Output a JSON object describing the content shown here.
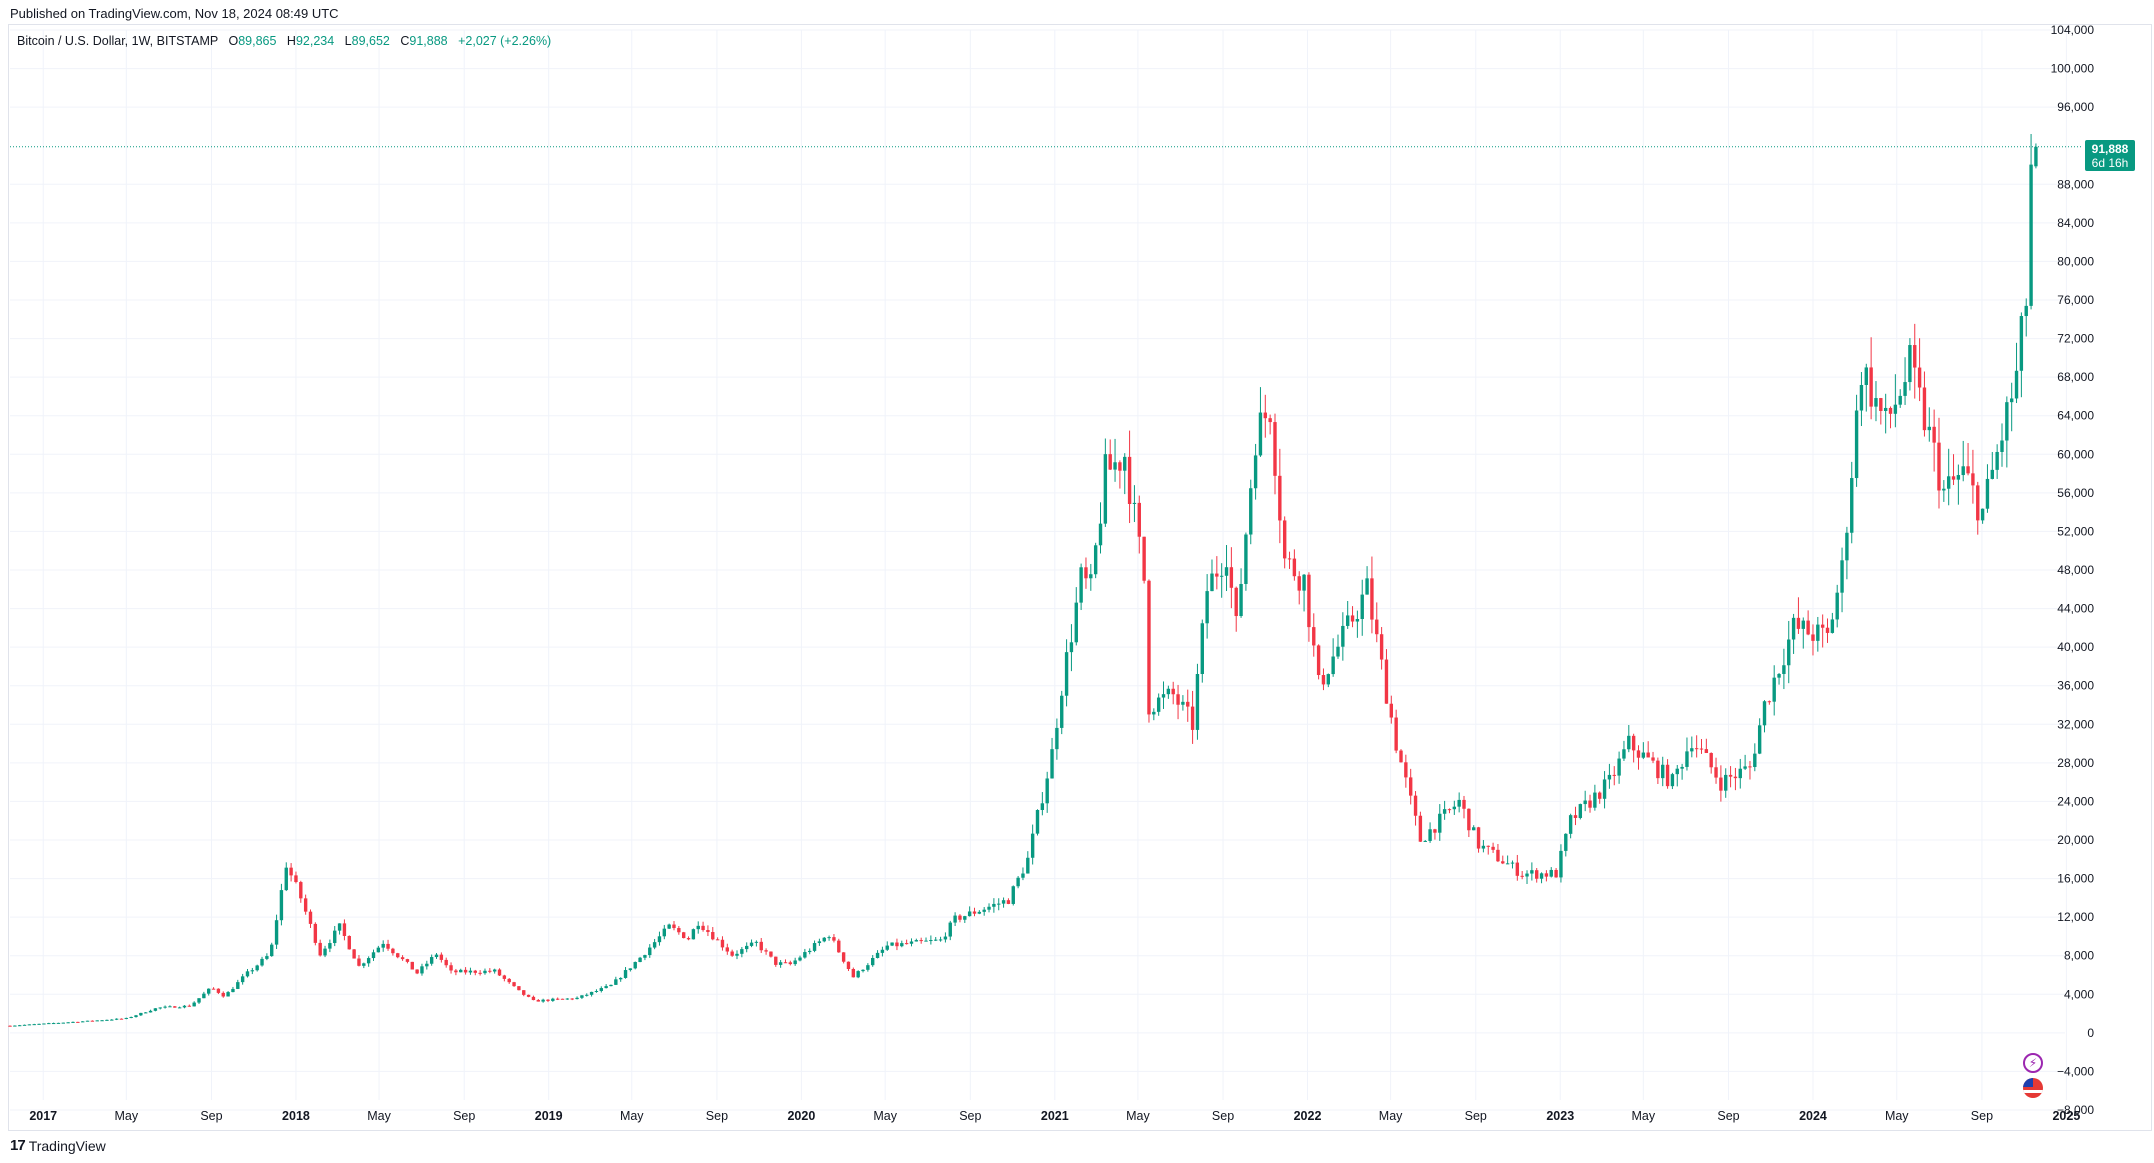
{
  "header": {
    "published": "Published on TradingView.com, Nov 18, 2024 08:49 UTC"
  },
  "legend": {
    "symbol": "Bitcoin / U.S. Dollar, 1W, BITSTAMP",
    "o_label": "O",
    "o_value": "89,865",
    "h_label": "H",
    "h_value": "92,234",
    "l_label": "L",
    "l_value": "89,652",
    "c_label": "C",
    "c_value": "91,888",
    "change": "+2,027 (+2.26%)"
  },
  "last_price": {
    "price": "91,888",
    "countdown": "6d 16h"
  },
  "footer": {
    "brand_mark": "17",
    "brand": "TradingView"
  },
  "colors": {
    "up": "#089981",
    "down": "#f23645",
    "grid": "#f0f3fa",
    "axis_text": "#131722",
    "price_line": "#089981"
  },
  "icons": [
    "lightning-icon",
    "us-flag-icon",
    "tradingview-logo-icon"
  ],
  "chart_data": {
    "type": "candlestick",
    "title": "Bitcoin / U.S. Dollar, 1W, BITSTAMP",
    "ylim": [
      -8000,
      104000
    ],
    "y_ticks": [
      104000,
      100000,
      96000,
      88000,
      84000,
      80000,
      76000,
      72000,
      68000,
      64000,
      60000,
      56000,
      52000,
      48000,
      44000,
      40000,
      36000,
      32000,
      28000,
      24000,
      20000,
      16000,
      12000,
      8000,
      4000,
      0,
      -4000,
      -8000
    ],
    "y_tick_labels": [
      "104,000",
      "100,000",
      "96,000",
      "88,000",
      "84,000",
      "80,000",
      "76,000",
      "72,000",
      "68,000",
      "64,000",
      "60,000",
      "56,000",
      "52,000",
      "48,000",
      "44,000",
      "40,000",
      "36,000",
      "32,000",
      "28,000",
      "24,000",
      "20,000",
      "16,000",
      "12,000",
      "8,000",
      "4,000",
      "0",
      "−4,000",
      "−8,000"
    ],
    "xlim": [
      "2016-11-14",
      "2024-12-30"
    ],
    "x_ticks": [
      {
        "date": "2017-01-01",
        "label": "2017"
      },
      {
        "date": "2017-05-01",
        "label": "May"
      },
      {
        "date": "2017-09-01",
        "label": "Sep"
      },
      {
        "date": "2018-01-01",
        "label": "2018"
      },
      {
        "date": "2018-05-01",
        "label": "May"
      },
      {
        "date": "2018-09-01",
        "label": "Sep"
      },
      {
        "date": "2019-01-01",
        "label": "2019"
      },
      {
        "date": "2019-05-01",
        "label": "May"
      },
      {
        "date": "2019-09-01",
        "label": "Sep"
      },
      {
        "date": "2020-01-01",
        "label": "2020"
      },
      {
        "date": "2020-05-01",
        "label": "May"
      },
      {
        "date": "2020-09-01",
        "label": "Sep"
      },
      {
        "date": "2021-01-01",
        "label": "2021"
      },
      {
        "date": "2021-05-01",
        "label": "May"
      },
      {
        "date": "2021-09-01",
        "label": "Sep"
      },
      {
        "date": "2022-01-01",
        "label": "2022"
      },
      {
        "date": "2022-05-01",
        "label": "May"
      },
      {
        "date": "2022-09-01",
        "label": "Sep"
      },
      {
        "date": "2023-01-01",
        "label": "2023"
      },
      {
        "date": "2023-05-01",
        "label": "May"
      },
      {
        "date": "2023-09-01",
        "label": "Sep"
      },
      {
        "date": "2024-01-01",
        "label": "2024"
      },
      {
        "date": "2024-05-01",
        "label": "May"
      },
      {
        "date": "2024-09-01",
        "label": "Sep"
      },
      {
        "date": "2025-01-01",
        "label": "2025"
      }
    ],
    "interval": "1W",
    "close_path": [
      {
        "date": "2016-11-14",
        "close": 740
      },
      {
        "date": "2017-03-01",
        "close": 1200
      },
      {
        "date": "2017-05-01",
        "close": 1500
      },
      {
        "date": "2017-06-15",
        "close": 2600
      },
      {
        "date": "2017-08-01",
        "close": 2800
      },
      {
        "date": "2017-09-01",
        "close": 4700
      },
      {
        "date": "2017-09-20",
        "close": 3800
      },
      {
        "date": "2017-10-20",
        "close": 6000
      },
      {
        "date": "2017-11-25",
        "close": 8200
      },
      {
        "date": "2017-12-18",
        "close": 17500
      },
      {
        "date": "2018-01-08",
        "close": 14000
      },
      {
        "date": "2018-02-05",
        "close": 8200
      },
      {
        "date": "2018-03-05",
        "close": 11000
      },
      {
        "date": "2018-04-02",
        "close": 6900
      },
      {
        "date": "2018-05-07",
        "close": 9400
      },
      {
        "date": "2018-06-25",
        "close": 6200
      },
      {
        "date": "2018-07-23",
        "close": 8200
      },
      {
        "date": "2018-08-13",
        "close": 6300
      },
      {
        "date": "2018-10-15",
        "close": 6400
      },
      {
        "date": "2018-11-19",
        "close": 4300
      },
      {
        "date": "2018-12-10",
        "close": 3300
      },
      {
        "date": "2019-02-11",
        "close": 3600
      },
      {
        "date": "2019-04-01",
        "close": 4900
      },
      {
        "date": "2019-05-13",
        "close": 7800
      },
      {
        "date": "2019-06-24",
        "close": 11000
      },
      {
        "date": "2019-07-22",
        "close": 9800
      },
      {
        "date": "2019-08-05",
        "close": 11500
      },
      {
        "date": "2019-09-23",
        "close": 8100
      },
      {
        "date": "2019-10-28",
        "close": 9300
      },
      {
        "date": "2019-11-25",
        "close": 7200
      },
      {
        "date": "2019-12-16",
        "close": 7100
      },
      {
        "date": "2020-02-10",
        "close": 10200
      },
      {
        "date": "2020-03-16",
        "close": 5800
      },
      {
        "date": "2020-05-04",
        "close": 9000
      },
      {
        "date": "2020-07-20",
        "close": 9600
      },
      {
        "date": "2020-08-10",
        "close": 11800
      },
      {
        "date": "2020-10-26",
        "close": 13800
      },
      {
        "date": "2020-11-23",
        "close": 18000
      },
      {
        "date": "2020-12-28",
        "close": 29000
      },
      {
        "date": "2021-01-11",
        "close": 36000
      },
      {
        "date": "2021-02-08",
        "close": 47000
      },
      {
        "date": "2021-02-22",
        "close": 46000
      },
      {
        "date": "2021-03-15",
        "close": 58000
      },
      {
        "date": "2021-04-12",
        "close": 60000
      },
      {
        "date": "2021-05-10",
        "close": 47000
      },
      {
        "date": "2021-05-17",
        "close": 34000
      },
      {
        "date": "2021-06-21",
        "close": 35000
      },
      {
        "date": "2021-07-19",
        "close": 32000
      },
      {
        "date": "2021-08-09",
        "close": 46000
      },
      {
        "date": "2021-09-06",
        "close": 50000
      },
      {
        "date": "2021-09-20",
        "close": 42000
      },
      {
        "date": "2021-10-18",
        "close": 62000
      },
      {
        "date": "2021-11-08",
        "close": 65000
      },
      {
        "date": "2021-11-29",
        "close": 49000
      },
      {
        "date": "2021-12-27",
        "close": 47000
      },
      {
        "date": "2022-01-17",
        "close": 36000
      },
      {
        "date": "2022-03-28",
        "close": 46000
      },
      {
        "date": "2022-05-09",
        "close": 30000
      },
      {
        "date": "2022-06-13",
        "close": 20000
      },
      {
        "date": "2022-08-08",
        "close": 24000
      },
      {
        "date": "2022-09-05",
        "close": 19500
      },
      {
        "date": "2022-11-07",
        "close": 16500
      },
      {
        "date": "2022-12-26",
        "close": 16500
      },
      {
        "date": "2023-01-16",
        "close": 22000
      },
      {
        "date": "2023-03-13",
        "close": 26000
      },
      {
        "date": "2023-04-10",
        "close": 30000
      },
      {
        "date": "2023-06-12",
        "close": 26000
      },
      {
        "date": "2023-07-10",
        "close": 30500
      },
      {
        "date": "2023-08-21",
        "close": 26000
      },
      {
        "date": "2023-10-02",
        "close": 27500
      },
      {
        "date": "2023-10-23",
        "close": 34000
      },
      {
        "date": "2023-12-04",
        "close": 42000
      },
      {
        "date": "2024-01-22",
        "close": 41000
      },
      {
        "date": "2024-02-12",
        "close": 48000
      },
      {
        "date": "2024-03-11",
        "close": 69000
      },
      {
        "date": "2024-04-15",
        "close": 63000
      },
      {
        "date": "2024-05-20",
        "close": 69000
      },
      {
        "date": "2024-06-24",
        "close": 60000
      },
      {
        "date": "2024-07-08",
        "close": 56000
      },
      {
        "date": "2024-08-05",
        "close": 58000
      },
      {
        "date": "2024-09-02",
        "close": 54000
      },
      {
        "date": "2024-10-21",
        "close": 68000
      },
      {
        "date": "2024-11-04",
        "close": 76000
      },
      {
        "date": "2024-11-11",
        "close": 89800
      },
      {
        "date": "2024-11-18",
        "open": 89865,
        "high": 92234,
        "low": 89652,
        "close": 91888
      }
    ],
    "last_bar": {
      "date": "2024-11-18",
      "open": 89865,
      "high": 92234,
      "low": 89652,
      "close": 91888,
      "change": 2027,
      "change_pct": 2.26
    }
  }
}
